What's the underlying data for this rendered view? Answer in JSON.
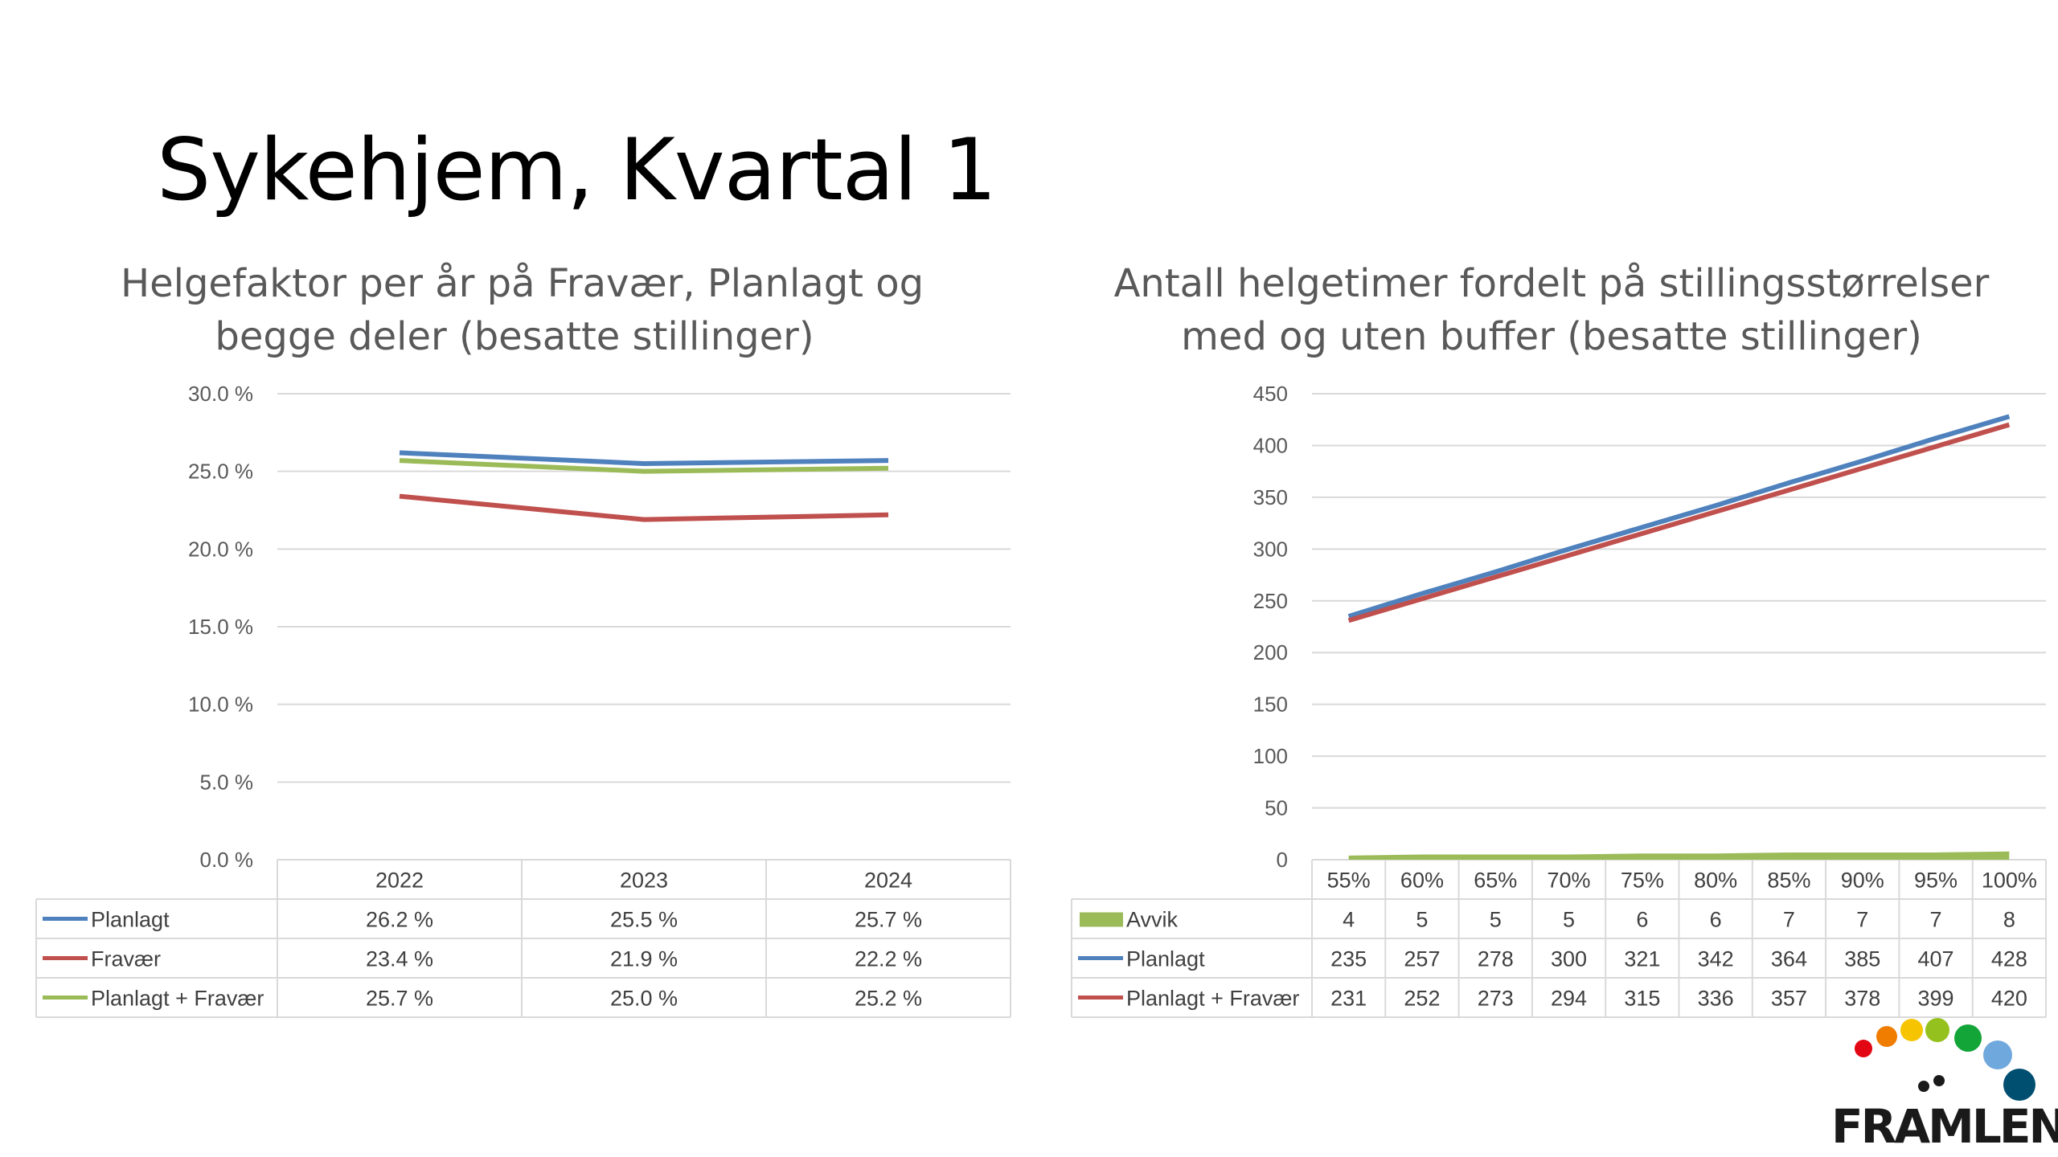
{
  "slide": {
    "title": "Sykehjem, Kvartal 1"
  },
  "colors": {
    "planlagt": "#4F81BD",
    "fravaer": "#C0504D",
    "kombinert": "#9BBB59",
    "grid": "#D9D9D9",
    "text": "#595959"
  },
  "chart_data": [
    {
      "type": "line",
      "title_lines": [
        "Helgefaktor per år på Fravær, Planlagt og",
        "begge deler (besatte stillinger)"
      ],
      "categories": [
        "2022",
        "2023",
        "2024"
      ],
      "ylim": [
        0,
        30
      ],
      "y_ticks": [
        "30.0 %",
        "25.0 %",
        "20.0 %",
        "15.0 %",
        "10.0 %",
        "5.0 %",
        "0.0 %"
      ],
      "grid": true,
      "legend": "data-table",
      "series": [
        {
          "name": "Planlagt",
          "values": [
            26.2,
            25.5,
            25.7
          ],
          "labels": [
            "26.2 %",
            "25.5 %",
            "25.7 %"
          ],
          "color": "#4F81BD",
          "kind": "line"
        },
        {
          "name": "Fravær",
          "values": [
            23.4,
            21.9,
            22.2
          ],
          "labels": [
            "23.4 %",
            "21.9 %",
            "22.2 %"
          ],
          "color": "#C0504D",
          "kind": "line"
        },
        {
          "name": "Planlagt + Fravær",
          "values": [
            25.7,
            25.0,
            25.2
          ],
          "labels": [
            "25.7 %",
            "25.0 %",
            "25.2 %"
          ],
          "color": "#9BBB59",
          "kind": "line"
        }
      ]
    },
    {
      "type": "line",
      "title_lines": [
        "Antall helgetimer fordelt på stillingsstørrelser",
        "med og uten buffer (besatte stillinger)"
      ],
      "categories": [
        "55%",
        "60%",
        "65%",
        "70%",
        "75%",
        "80%",
        "85%",
        "90%",
        "95%",
        "100%"
      ],
      "ylim": [
        0,
        450
      ],
      "y_ticks": [
        "450",
        "400",
        "350",
        "300",
        "250",
        "200",
        "150",
        "100",
        "50",
        "0"
      ],
      "grid": true,
      "legend": "data-table",
      "series": [
        {
          "name": "Avvik",
          "values": [
            4,
            5,
            5,
            5,
            6,
            6,
            7,
            7,
            7,
            8
          ],
          "labels": [
            "4",
            "5",
            "5",
            "5",
            "6",
            "6",
            "7",
            "7",
            "7",
            "8"
          ],
          "color": "#9BBB59",
          "kind": "area"
        },
        {
          "name": "Planlagt",
          "values": [
            235,
            257,
            278,
            300,
            321,
            342,
            364,
            385,
            407,
            428
          ],
          "labels": [
            "235",
            "257",
            "278",
            "300",
            "321",
            "342",
            "364",
            "385",
            "407",
            "428"
          ],
          "color": "#4F81BD",
          "kind": "line"
        },
        {
          "name": "Planlagt + Fravær",
          "values": [
            231,
            252,
            273,
            294,
            315,
            336,
            357,
            378,
            399,
            420
          ],
          "labels": [
            "231",
            "252",
            "273",
            "294",
            "315",
            "336",
            "357",
            "378",
            "399",
            "420"
          ],
          "color": "#C0504D",
          "kind": "line"
        }
      ]
    }
  ],
  "logo": {
    "text": "FRAMLENT",
    "dot_colors": [
      "#E30613",
      "#F07D00",
      "#F6C400",
      "#95C11F",
      "#13A538",
      "#6FA8DC",
      "#004F71"
    ]
  }
}
